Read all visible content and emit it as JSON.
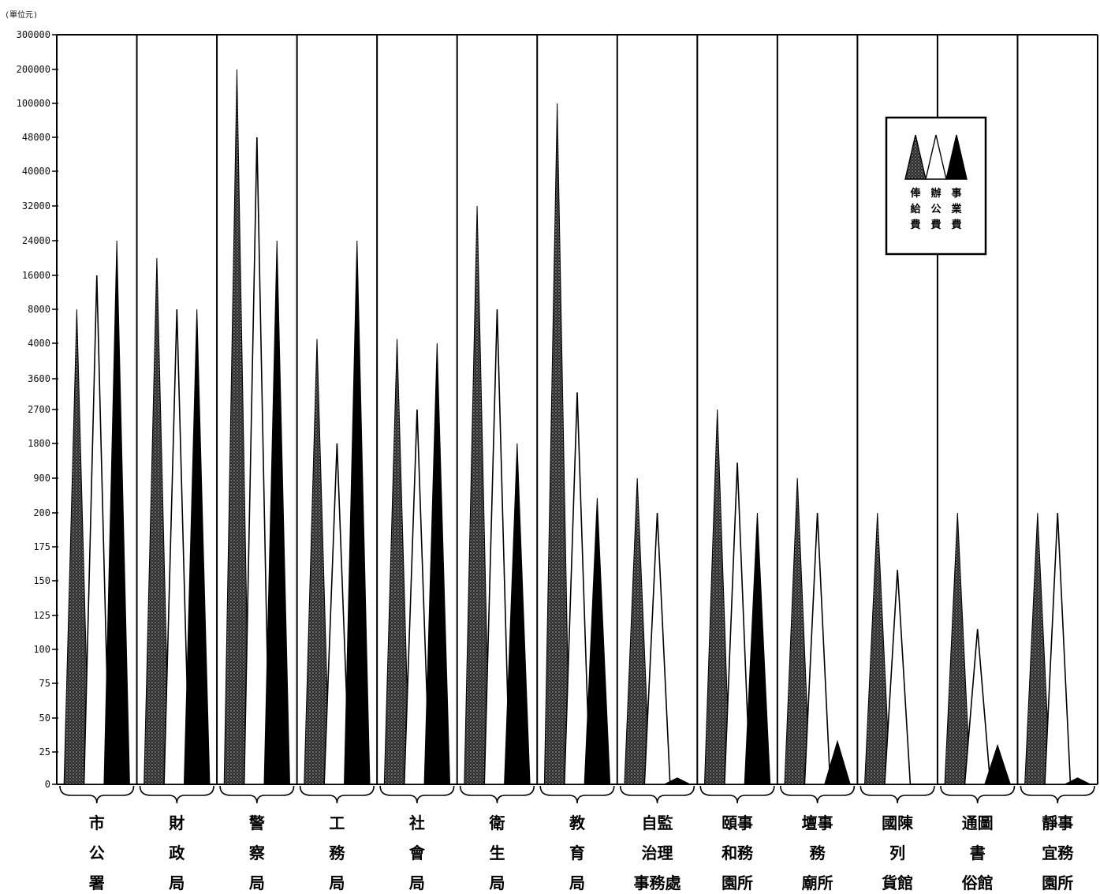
{
  "chart_data": {
    "type": "area",
    "unit_label": "(單位元)",
    "y_ticks": [
      "300000",
      "200000",
      "100000",
      "48000",
      "40000",
      "32000",
      "24000",
      "16000",
      "8000",
      "4000",
      "3600",
      "2700",
      "1800",
      "900",
      "200",
      "175",
      "150",
      "125",
      "100",
      "75",
      "50",
      "25",
      "0"
    ],
    "y_scale": "piecewise (segments 0–200, 200–3600, 3600–300000)",
    "categories": [
      {
        "lines": [
          "市",
          "公",
          "署"
        ]
      },
      {
        "lines": [
          "財",
          "政",
          "局"
        ]
      },
      {
        "lines": [
          "警",
          "察",
          "局"
        ]
      },
      {
        "lines": [
          "工",
          "務",
          "局"
        ]
      },
      {
        "lines": [
          "社",
          "會",
          "局"
        ]
      },
      {
        "lines": [
          "衛",
          "生",
          "局"
        ]
      },
      {
        "lines": [
          "教",
          "育",
          "局"
        ]
      },
      {
        "lines": [
          "自監",
          "治理",
          "事務處"
        ]
      },
      {
        "lines": [
          "頤事",
          "和務",
          "園所"
        ]
      },
      {
        "lines": [
          "壇事",
          "務",
          "廟所"
        ]
      },
      {
        "lines": [
          "國陳",
          "列",
          "貨館"
        ]
      },
      {
        "lines": [
          "通圖",
          "書",
          "俗館"
        ]
      },
      {
        "lines": [
          "靜事",
          "宜務",
          "園所"
        ]
      }
    ],
    "series": [
      {
        "name": "俸給費",
        "values": [
          8000,
          20000,
          200000,
          4500,
          4500,
          32000,
          100000,
          900,
          2700,
          900,
          200,
          200,
          200
        ]
      },
      {
        "name": "辦公費",
        "values": [
          16000,
          8000,
          48000,
          1800,
          2700,
          8000,
          3200,
          200,
          1300,
          200,
          158,
          115,
          200
        ]
      },
      {
        "name": "事業費",
        "values": [
          24000,
          8000,
          24000,
          24000,
          4000,
          1800,
          500,
          5,
          200,
          33,
          0,
          30,
          5
        ]
      }
    ],
    "legend": {
      "placement": "top-right",
      "entries": [
        {
          "name": "俸給費",
          "lines": [
            "俸",
            "給",
            "費"
          ],
          "style": "stippled"
        },
        {
          "name": "辦公費",
          "lines": [
            "辦",
            "公",
            "費"
          ],
          "style": "white"
        },
        {
          "name": "事業費",
          "lines": [
            "事",
            "業",
            "費"
          ],
          "style": "black"
        }
      ]
    },
    "grid": "vertical separators between categories"
  },
  "colors": {
    "ink": "#000000",
    "stipple": "#555555",
    "paper": "#ffffff"
  }
}
